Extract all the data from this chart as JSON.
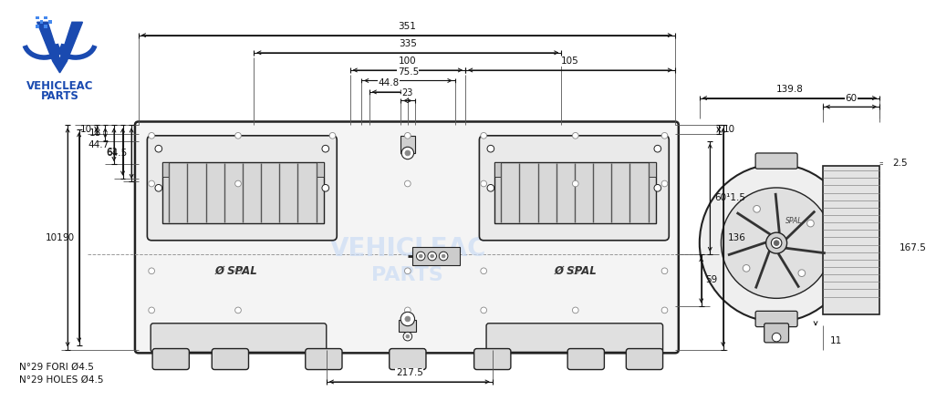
{
  "bg_color": "#ffffff",
  "line_color": "#222222",
  "gray_fill": "#f2f2f2",
  "dark_gray": "#555555",
  "mid_gray": "#888888",
  "light_gray": "#cccccc",
  "logo_blue": "#1a4ab0",
  "logo_blue2": "#2255cc",
  "watermark_color": "#ccddf5",
  "dim_color": "#111111",
  "dimensions": {
    "top_351": "351",
    "top_335": "335",
    "top_100": "100",
    "top_75_5": "75.5",
    "top_44_8": "44.8",
    "top_105": "105",
    "left_101": "101",
    "left_90": "90",
    "left_64_5": "64.5",
    "left_61": "61",
    "left_44_7": "44.7",
    "left_18": "18",
    "left_10": "10",
    "right_10": "10",
    "right_136": "136",
    "right_60_15": "60¹1.5",
    "right_59": "59",
    "center_23": "23",
    "bottom_217_5": "217.5",
    "side_139_8": "139.8",
    "side_60": "60",
    "side_2_5": "2.5",
    "side_167_5": "167.5",
    "side_11": "11"
  },
  "labels": {
    "spal": "Ø SPAL",
    "holes": "N°29 FORI Ø4.5\nN°29 HOLES Ø4.5",
    "vehicleac": "VEHICLEAC",
    "parts": "PARTS"
  }
}
